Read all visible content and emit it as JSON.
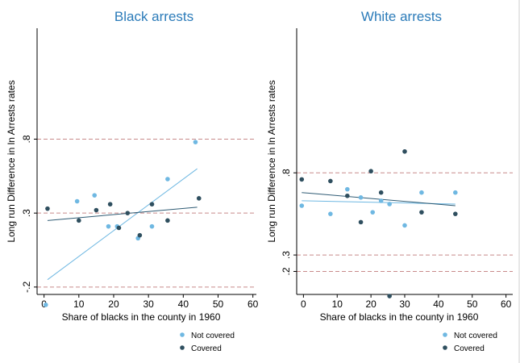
{
  "colors": {
    "not_covered": "#6fb8e2",
    "covered": "#2f4f5f",
    "fit_not_covered": "#6fb8e2",
    "fit_covered": "#2f5b74",
    "ref_line": "#c88a8a",
    "title": "#2b7bb9"
  },
  "legend": {
    "not_covered": "Not covered",
    "covered": "Covered"
  },
  "chart_data": [
    {
      "type": "scatter",
      "title": "Black arrests",
      "xlabel": "Share of blacks in the county in 1960",
      "ylabel": "Long run Difference in ln Arrests rates",
      "xlim": [
        -2,
        61
      ],
      "ylim": [
        -0.25,
        1.55
      ],
      "xticks": [
        0,
        10,
        20,
        30,
        40,
        50,
        60
      ],
      "yticks": [
        -0.2,
        0.3,
        0.8
      ],
      "ytick_labels": [
        "-.2",
        ".3",
        ".8"
      ],
      "reference_lines": [
        -0.2,
        0.3,
        0.8
      ],
      "legend_position": "bottom-right",
      "series": [
        {
          "name": "Not covered",
          "points": [
            [
              0.5,
              -0.32
            ],
            [
              9.5,
              0.38
            ],
            [
              14.5,
              0.42
            ],
            [
              18.5,
              0.21
            ],
            [
              21,
              0.21
            ],
            [
              27,
              0.13
            ],
            [
              31,
              0.21
            ],
            [
              35.5,
              0.53
            ],
            [
              43.5,
              0.78
            ]
          ],
          "fit": [
            [
              1,
              -0.15
            ],
            [
              44,
              0.6
            ]
          ]
        },
        {
          "name": "Covered",
          "points": [
            [
              1,
              0.33
            ],
            [
              10,
              0.25
            ],
            [
              15,
              0.32
            ],
            [
              19,
              0.36
            ],
            [
              21.5,
              0.2
            ],
            [
              24,
              0.3
            ],
            [
              27.5,
              0.15
            ],
            [
              31,
              0.36
            ],
            [
              35.5,
              0.25
            ],
            [
              44.5,
              0.4
            ]
          ],
          "fit": [
            [
              1,
              0.25
            ],
            [
              44,
              0.34
            ]
          ]
        }
      ]
    },
    {
      "type": "scatter",
      "title": "White arrests",
      "xlabel": "Share of blacks in the county in 1960",
      "ylabel": "Long run Difference in ln Arrests rates",
      "xlim": [
        -2,
        62
      ],
      "ylim": [
        0.06,
        1.68
      ],
      "xticks": [
        0,
        10,
        20,
        30,
        40,
        50,
        60
      ],
      "yticks": [
        0.2,
        0.3,
        0.8
      ],
      "ytick_labels": [
        ".2",
        ".3",
        ".8"
      ],
      "reference_lines": [
        0.2,
        0.3,
        0.8
      ],
      "legend_position": "bottom-right",
      "series": [
        {
          "name": "Not covered",
          "points": [
            [
              -0.5,
              0.6
            ],
            [
              8,
              0.55
            ],
            [
              13,
              0.7
            ],
            [
              17,
              0.65
            ],
            [
              20.5,
              0.56
            ],
            [
              23,
              0.63
            ],
            [
              25.5,
              0.61
            ],
            [
              30,
              0.48
            ],
            [
              35,
              0.68
            ],
            [
              45,
              0.68
            ]
          ],
          "fit": [
            [
              -0.5,
              0.63
            ],
            [
              45,
              0.61
            ]
          ]
        },
        {
          "name": "Covered",
          "points": [
            [
              -0.5,
              0.76
            ],
            [
              8,
              0.75
            ],
            [
              13,
              0.66
            ],
            [
              17,
              0.5
            ],
            [
              20,
              0.81
            ],
            [
              23,
              0.68
            ],
            [
              25.5,
              0.05
            ],
            [
              30,
              0.93
            ],
            [
              35,
              0.56
            ],
            [
              45,
              0.55
            ]
          ],
          "fit": [
            [
              -0.5,
              0.68
            ],
            [
              45,
              0.6
            ]
          ]
        }
      ]
    }
  ]
}
